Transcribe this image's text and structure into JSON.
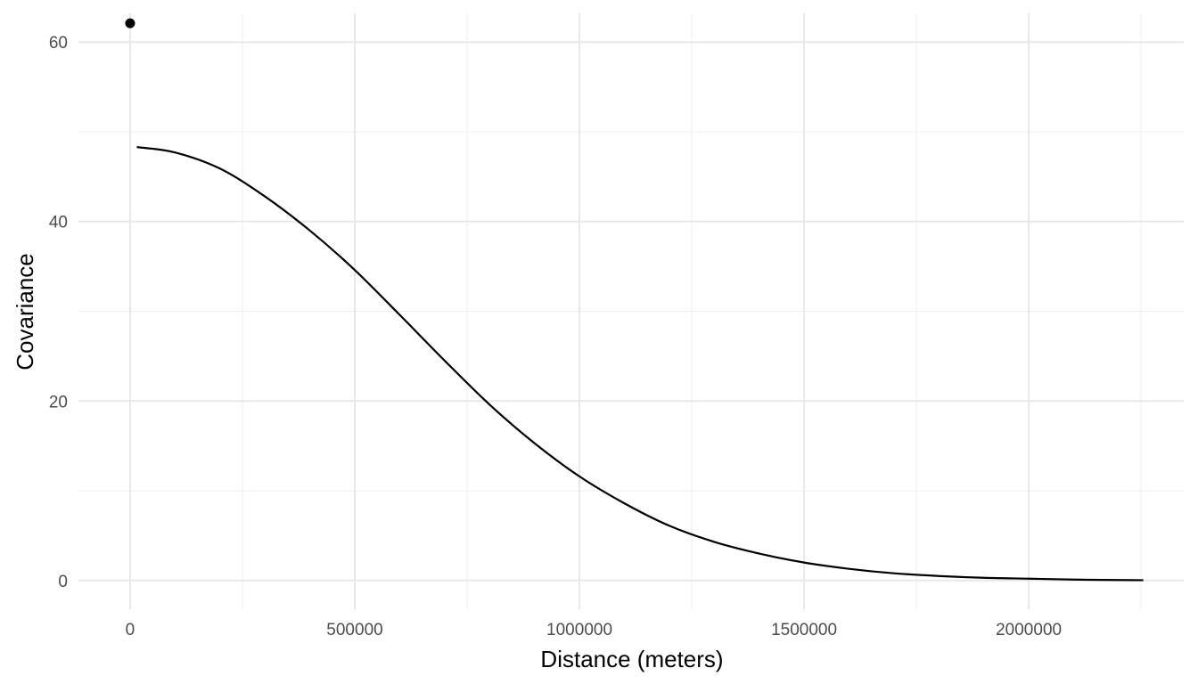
{
  "chart_data": {
    "type": "line",
    "xlabel": "Distance (meters)",
    "ylabel": "Covariance",
    "xlim": [
      -115000,
      2345000
    ],
    "ylim": [
      -3.2,
      63.2
    ],
    "x_major_ticks": [
      0,
      500000,
      1000000,
      1500000,
      2000000
    ],
    "x_minor_ticks": [
      250000,
      750000,
      1250000,
      1750000,
      2250000
    ],
    "x_tick_labels": [
      "0",
      "500000",
      "1000000",
      "1500000",
      "2000000"
    ],
    "y_major_ticks": [
      0,
      20,
      40,
      60
    ],
    "y_minor_ticks": [
      10,
      30,
      50
    ],
    "y_tick_labels": [
      "0",
      "20",
      "40",
      "60"
    ],
    "grid": true,
    "legend": "none",
    "points": [
      {
        "x": 0,
        "y": 62.1
      }
    ],
    "series": [
      {
        "type": "line",
        "x": [
          15000,
          100000,
          200000,
          300000,
          400000,
          500000,
          600000,
          700000,
          800000,
          900000,
          1000000,
          1100000,
          1200000,
          1300000,
          1400000,
          1500000,
          1600000,
          1700000,
          1800000,
          1900000,
          2000000,
          2100000,
          2200000,
          2255000
        ],
        "y": [
          48.3,
          47.7,
          45.9,
          42.8,
          39.0,
          34.6,
          29.6,
          24.5,
          19.6,
          15.3,
          11.6,
          8.6,
          6.1,
          4.3,
          3.0,
          2.0,
          1.3,
          0.8,
          0.5,
          0.3,
          0.2,
          0.1,
          0.05,
          0.03
        ],
        "color": "#000000"
      }
    ]
  }
}
